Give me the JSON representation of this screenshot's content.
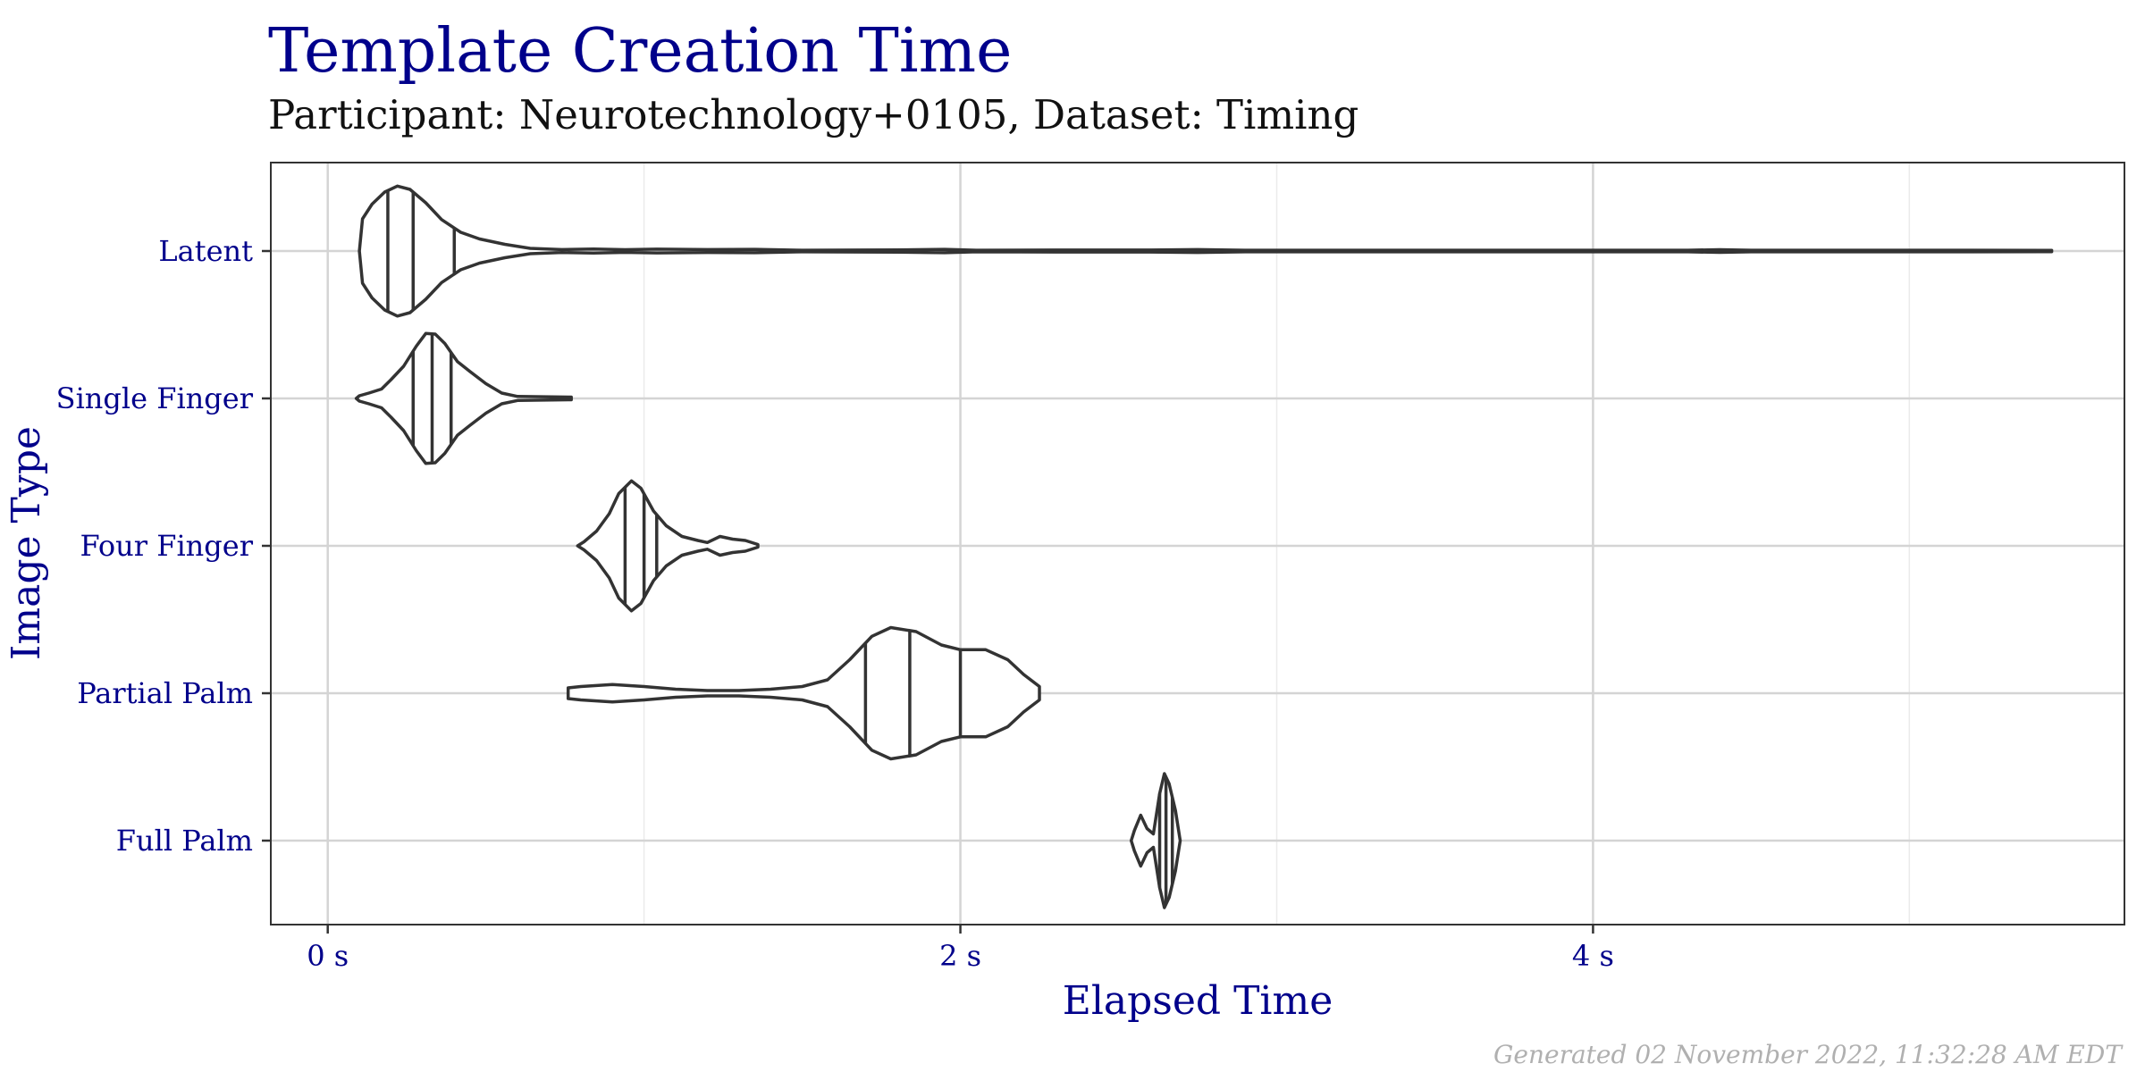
{
  "chart_data": {
    "type": "violin",
    "title": "Template Creation Time",
    "subtitle": "Participant: Neurotechnology+0105, Dataset: Timing",
    "xlabel": "Elapsed Time",
    "ylabel": "Image Type",
    "xlim": [
      -0.18,
      5.68
    ],
    "x_ticks": [
      {
        "value": 0,
        "label": "0 s"
      },
      {
        "value": 2,
        "label": "2 s"
      },
      {
        "value": 4,
        "label": "4 s"
      }
    ],
    "x_minor_gridlines": [
      1,
      3,
      5
    ],
    "grid": true,
    "line_color": "#333333",
    "label_color": "#00008b",
    "categories": [
      "Latent",
      "Single Finger",
      "Four Finger",
      "Partial Palm",
      "Full Palm"
    ],
    "violins": [
      {
        "category": "Latent",
        "quantiles": [
          0.19,
          0.27,
          0.4
        ],
        "profile": [
          [
            0.1,
            0.0
          ],
          [
            0.11,
            0.48
          ],
          [
            0.14,
            0.7
          ],
          [
            0.18,
            0.88
          ],
          [
            0.22,
            0.97
          ],
          [
            0.26,
            0.92
          ],
          [
            0.31,
            0.72
          ],
          [
            0.36,
            0.47
          ],
          [
            0.42,
            0.28
          ],
          [
            0.48,
            0.18
          ],
          [
            0.56,
            0.1
          ],
          [
            0.64,
            0.04
          ],
          [
            0.74,
            0.022
          ],
          [
            0.84,
            0.03
          ],
          [
            0.94,
            0.02
          ],
          [
            1.04,
            0.028
          ],
          [
            1.2,
            0.022
          ],
          [
            1.35,
            0.026
          ],
          [
            1.5,
            0.012
          ],
          [
            1.8,
            0.016
          ],
          [
            1.95,
            0.025
          ],
          [
            2.05,
            0.012
          ],
          [
            2.3,
            0.014
          ],
          [
            2.6,
            0.014
          ],
          [
            2.75,
            0.022
          ],
          [
            2.9,
            0.012
          ],
          [
            3.5,
            0.012
          ],
          [
            4.3,
            0.012
          ],
          [
            4.4,
            0.02
          ],
          [
            4.5,
            0.012
          ],
          [
            5.2,
            0.012
          ],
          [
            5.45,
            0.01
          ]
        ]
      },
      {
        "category": "Single Finger",
        "quantiles": [
          0.27,
          0.33,
          0.39
        ],
        "profile": [
          [
            0.09,
            0.0
          ],
          [
            0.1,
            0.04
          ],
          [
            0.13,
            0.08
          ],
          [
            0.17,
            0.14
          ],
          [
            0.2,
            0.28
          ],
          [
            0.24,
            0.48
          ],
          [
            0.28,
            0.78
          ],
          [
            0.31,
            0.97
          ],
          [
            0.34,
            0.96
          ],
          [
            0.37,
            0.82
          ],
          [
            0.41,
            0.55
          ],
          [
            0.45,
            0.4
          ],
          [
            0.5,
            0.22
          ],
          [
            0.55,
            0.08
          ],
          [
            0.6,
            0.03
          ],
          [
            0.68,
            0.025
          ],
          [
            0.77,
            0.02
          ]
        ]
      },
      {
        "category": "Four Finger",
        "quantiles": [
          0.94,
          1.0,
          1.04
        ],
        "profile": [
          [
            0.79,
            0.0
          ],
          [
            0.81,
            0.06
          ],
          [
            0.85,
            0.22
          ],
          [
            0.89,
            0.48
          ],
          [
            0.92,
            0.78
          ],
          [
            0.96,
            0.97
          ],
          [
            0.99,
            0.86
          ],
          [
            1.03,
            0.52
          ],
          [
            1.07,
            0.3
          ],
          [
            1.12,
            0.14
          ],
          [
            1.17,
            0.08
          ],
          [
            1.2,
            0.05
          ],
          [
            1.24,
            0.14
          ],
          [
            1.28,
            0.1
          ],
          [
            1.32,
            0.08
          ],
          [
            1.36,
            0.02
          ]
        ]
      },
      {
        "category": "Partial Palm",
        "quantiles": [
          1.7,
          1.84,
          2.0
        ],
        "profile": [
          [
            0.76,
            0.08
          ],
          [
            0.8,
            0.1
          ],
          [
            0.9,
            0.13
          ],
          [
            1.0,
            0.1
          ],
          [
            1.1,
            0.06
          ],
          [
            1.2,
            0.04
          ],
          [
            1.3,
            0.04
          ],
          [
            1.4,
            0.06
          ],
          [
            1.5,
            0.1
          ],
          [
            1.58,
            0.2
          ],
          [
            1.65,
            0.5
          ],
          [
            1.72,
            0.85
          ],
          [
            1.78,
            0.98
          ],
          [
            1.86,
            0.92
          ],
          [
            1.94,
            0.72
          ],
          [
            2.0,
            0.65
          ],
          [
            2.08,
            0.65
          ],
          [
            2.15,
            0.5
          ],
          [
            2.2,
            0.28
          ],
          [
            2.25,
            0.1
          ]
        ]
      },
      {
        "category": "Full Palm",
        "quantiles": [
          2.63,
          2.65,
          2.67
        ],
        "profile": [
          [
            2.54,
            0.0
          ],
          [
            2.55,
            0.15
          ],
          [
            2.57,
            0.38
          ],
          [
            2.59,
            0.18
          ],
          [
            2.61,
            0.1
          ],
          [
            2.63,
            0.7
          ],
          [
            2.645,
            1.0
          ],
          [
            2.66,
            0.85
          ],
          [
            2.68,
            0.45
          ],
          [
            2.695,
            0.0
          ]
        ]
      }
    ]
  },
  "caption": "Generated 02 November 2022, 11:32:28 AM EDT"
}
